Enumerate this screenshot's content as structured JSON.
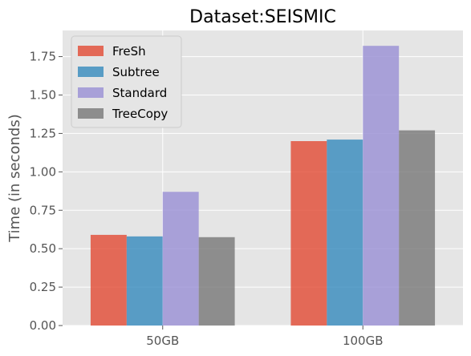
{
  "chart_data": {
    "type": "bar",
    "title": "Dataset:SEISMIC",
    "xlabel": "",
    "ylabel": "Time (in seconds)",
    "categories": [
      "50GB",
      "100GB"
    ],
    "series": [
      {
        "name": "FreSh",
        "values": [
          0.59,
          1.2
        ],
        "color": "#E24A33"
      },
      {
        "name": "Subtree",
        "values": [
          0.58,
          1.21
        ],
        "color": "#348ABD"
      },
      {
        "name": "Standard",
        "values": [
          0.87,
          1.82
        ],
        "color": "#988ED5"
      },
      {
        "name": "TreeCopy",
        "values": [
          0.575,
          1.27
        ],
        "color": "#777777"
      }
    ],
    "ylim": [
      0,
      1.92
    ],
    "yticks": [
      "0.00",
      "0.25",
      "0.50",
      "0.75",
      "1.00",
      "1.25",
      "1.50",
      "1.75"
    ],
    "grid": true,
    "legend_position": "top-left",
    "background_color": "#E5E5E5",
    "bar_opacity": 0.8
  }
}
